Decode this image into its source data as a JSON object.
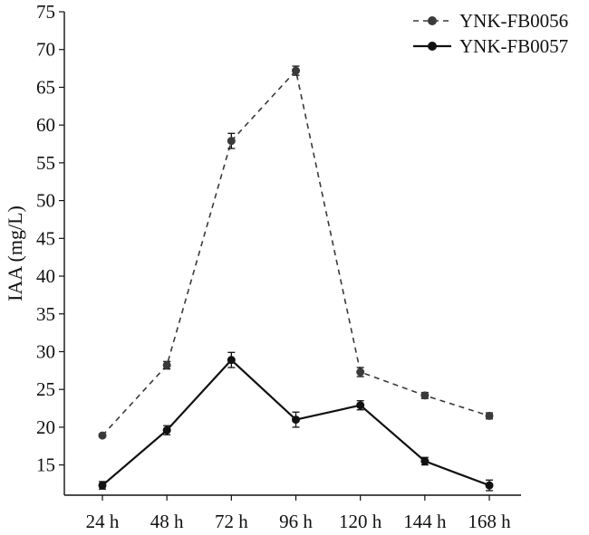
{
  "chart_data": {
    "type": "line",
    "ylabel": "IAA (mg/L)",
    "xlabel": "",
    "categories": [
      "24 h",
      "48 h",
      "72 h",
      "96 h",
      "120 h",
      "144 h",
      "168 h"
    ],
    "ylim": [
      11,
      75
    ],
    "yticks": [
      15,
      20,
      25,
      30,
      35,
      40,
      45,
      50,
      55,
      60,
      65,
      70,
      75
    ],
    "grid": false,
    "legend_position": "top-right",
    "series": [
      {
        "name": "YNK-FB0056",
        "style": "dashed",
        "color": "#3a3a3a",
        "values": [
          18.9,
          28.2,
          57.9,
          67.2,
          27.3,
          24.2,
          21.5
        ],
        "errors": [
          0.2,
          0.5,
          1.0,
          0.6,
          0.6,
          0.4,
          0.4
        ]
      },
      {
        "name": "YNK-FB0057",
        "style": "solid",
        "color": "#111111",
        "values": [
          12.3,
          19.6,
          28.9,
          21.0,
          22.9,
          15.5,
          12.3
        ],
        "errors": [
          0.5,
          0.6,
          1.0,
          1.0,
          0.6,
          0.5,
          0.7
        ]
      }
    ]
  }
}
